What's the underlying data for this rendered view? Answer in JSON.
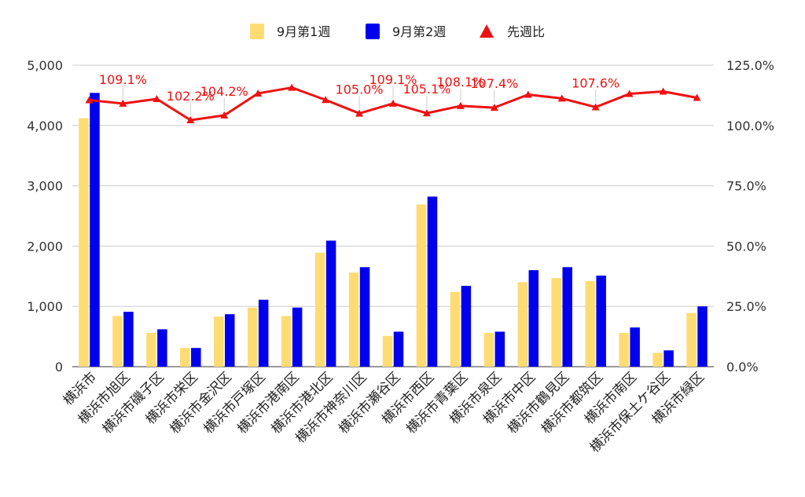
{
  "chart_data": {
    "type": "bar",
    "categories": [
      "横浜市",
      "横浜市旭区",
      "横浜市磯子区",
      "横浜市栄区",
      "横浜市金沢区",
      "横浜市戸塚区",
      "横浜市港南区",
      "横浜市港北区",
      "横浜市神奈川区",
      "横浜市瀬谷区",
      "横浜市西区",
      "横浜市青葉区",
      "横浜市泉区",
      "横浜市中区",
      "横浜市鶴見区",
      "横浜市都筑区",
      "横浜市南区",
      "横浜市保土ケ谷区",
      "横浜市緑区"
    ],
    "series": [
      {
        "name": "9月第1週",
        "type": "bar",
        "axis": "left",
        "color": "#ffdc73",
        "values": [
          4120,
          840,
          560,
          310,
          830,
          980,
          840,
          1890,
          1560,
          510,
          2690,
          1240,
          560,
          1400,
          1470,
          1420,
          560,
          230,
          890
        ]
      },
      {
        "name": "9月第2週",
        "type": "bar",
        "axis": "left",
        "color": "#0000ee",
        "values": [
          4540,
          910,
          620,
          310,
          870,
          1110,
          980,
          2090,
          1650,
          580,
          2820,
          1340,
          580,
          1600,
          1650,
          1510,
          650,
          270,
          1000
        ]
      },
      {
        "name": "先週比",
        "type": "line",
        "axis": "right",
        "color": "#ee1111",
        "values": [
          110.5,
          109.1,
          111.0,
          102.2,
          104.2,
          113.3,
          115.7,
          110.6,
          105.0,
          109.1,
          105.1,
          108.1,
          107.4,
          112.8,
          111.2,
          107.6,
          113.1,
          114.1,
          111.5
        ]
      }
    ],
    "data_labels": [
      {
        "index": 1,
        "text": "109.1%"
      },
      {
        "index": 3,
        "text": "102.2%"
      },
      {
        "index": 4,
        "text": "104.2%"
      },
      {
        "index": 8,
        "text": "105.0%"
      },
      {
        "index": 9,
        "text": "109.1%"
      },
      {
        "index": 10,
        "text": "105.1%"
      },
      {
        "index": 11,
        "text": "108.1%"
      },
      {
        "index": 12,
        "text": "107.4%"
      },
      {
        "index": 15,
        "text": "107.6%"
      }
    ],
    "yleft": {
      "min": 0,
      "max": 5000,
      "ticks": [
        "0",
        "1,000",
        "2,000",
        "3,000",
        "4,000",
        "5,000"
      ]
    },
    "yright": {
      "min": 0,
      "max": 125,
      "ticks": [
        "0.0%",
        "25.0%",
        "50.0%",
        "75.0%",
        "100.0%",
        "125.0%"
      ]
    },
    "title": "",
    "xlabel": "",
    "ylabel": "",
    "grid": true,
    "legend_position": "top-center"
  }
}
